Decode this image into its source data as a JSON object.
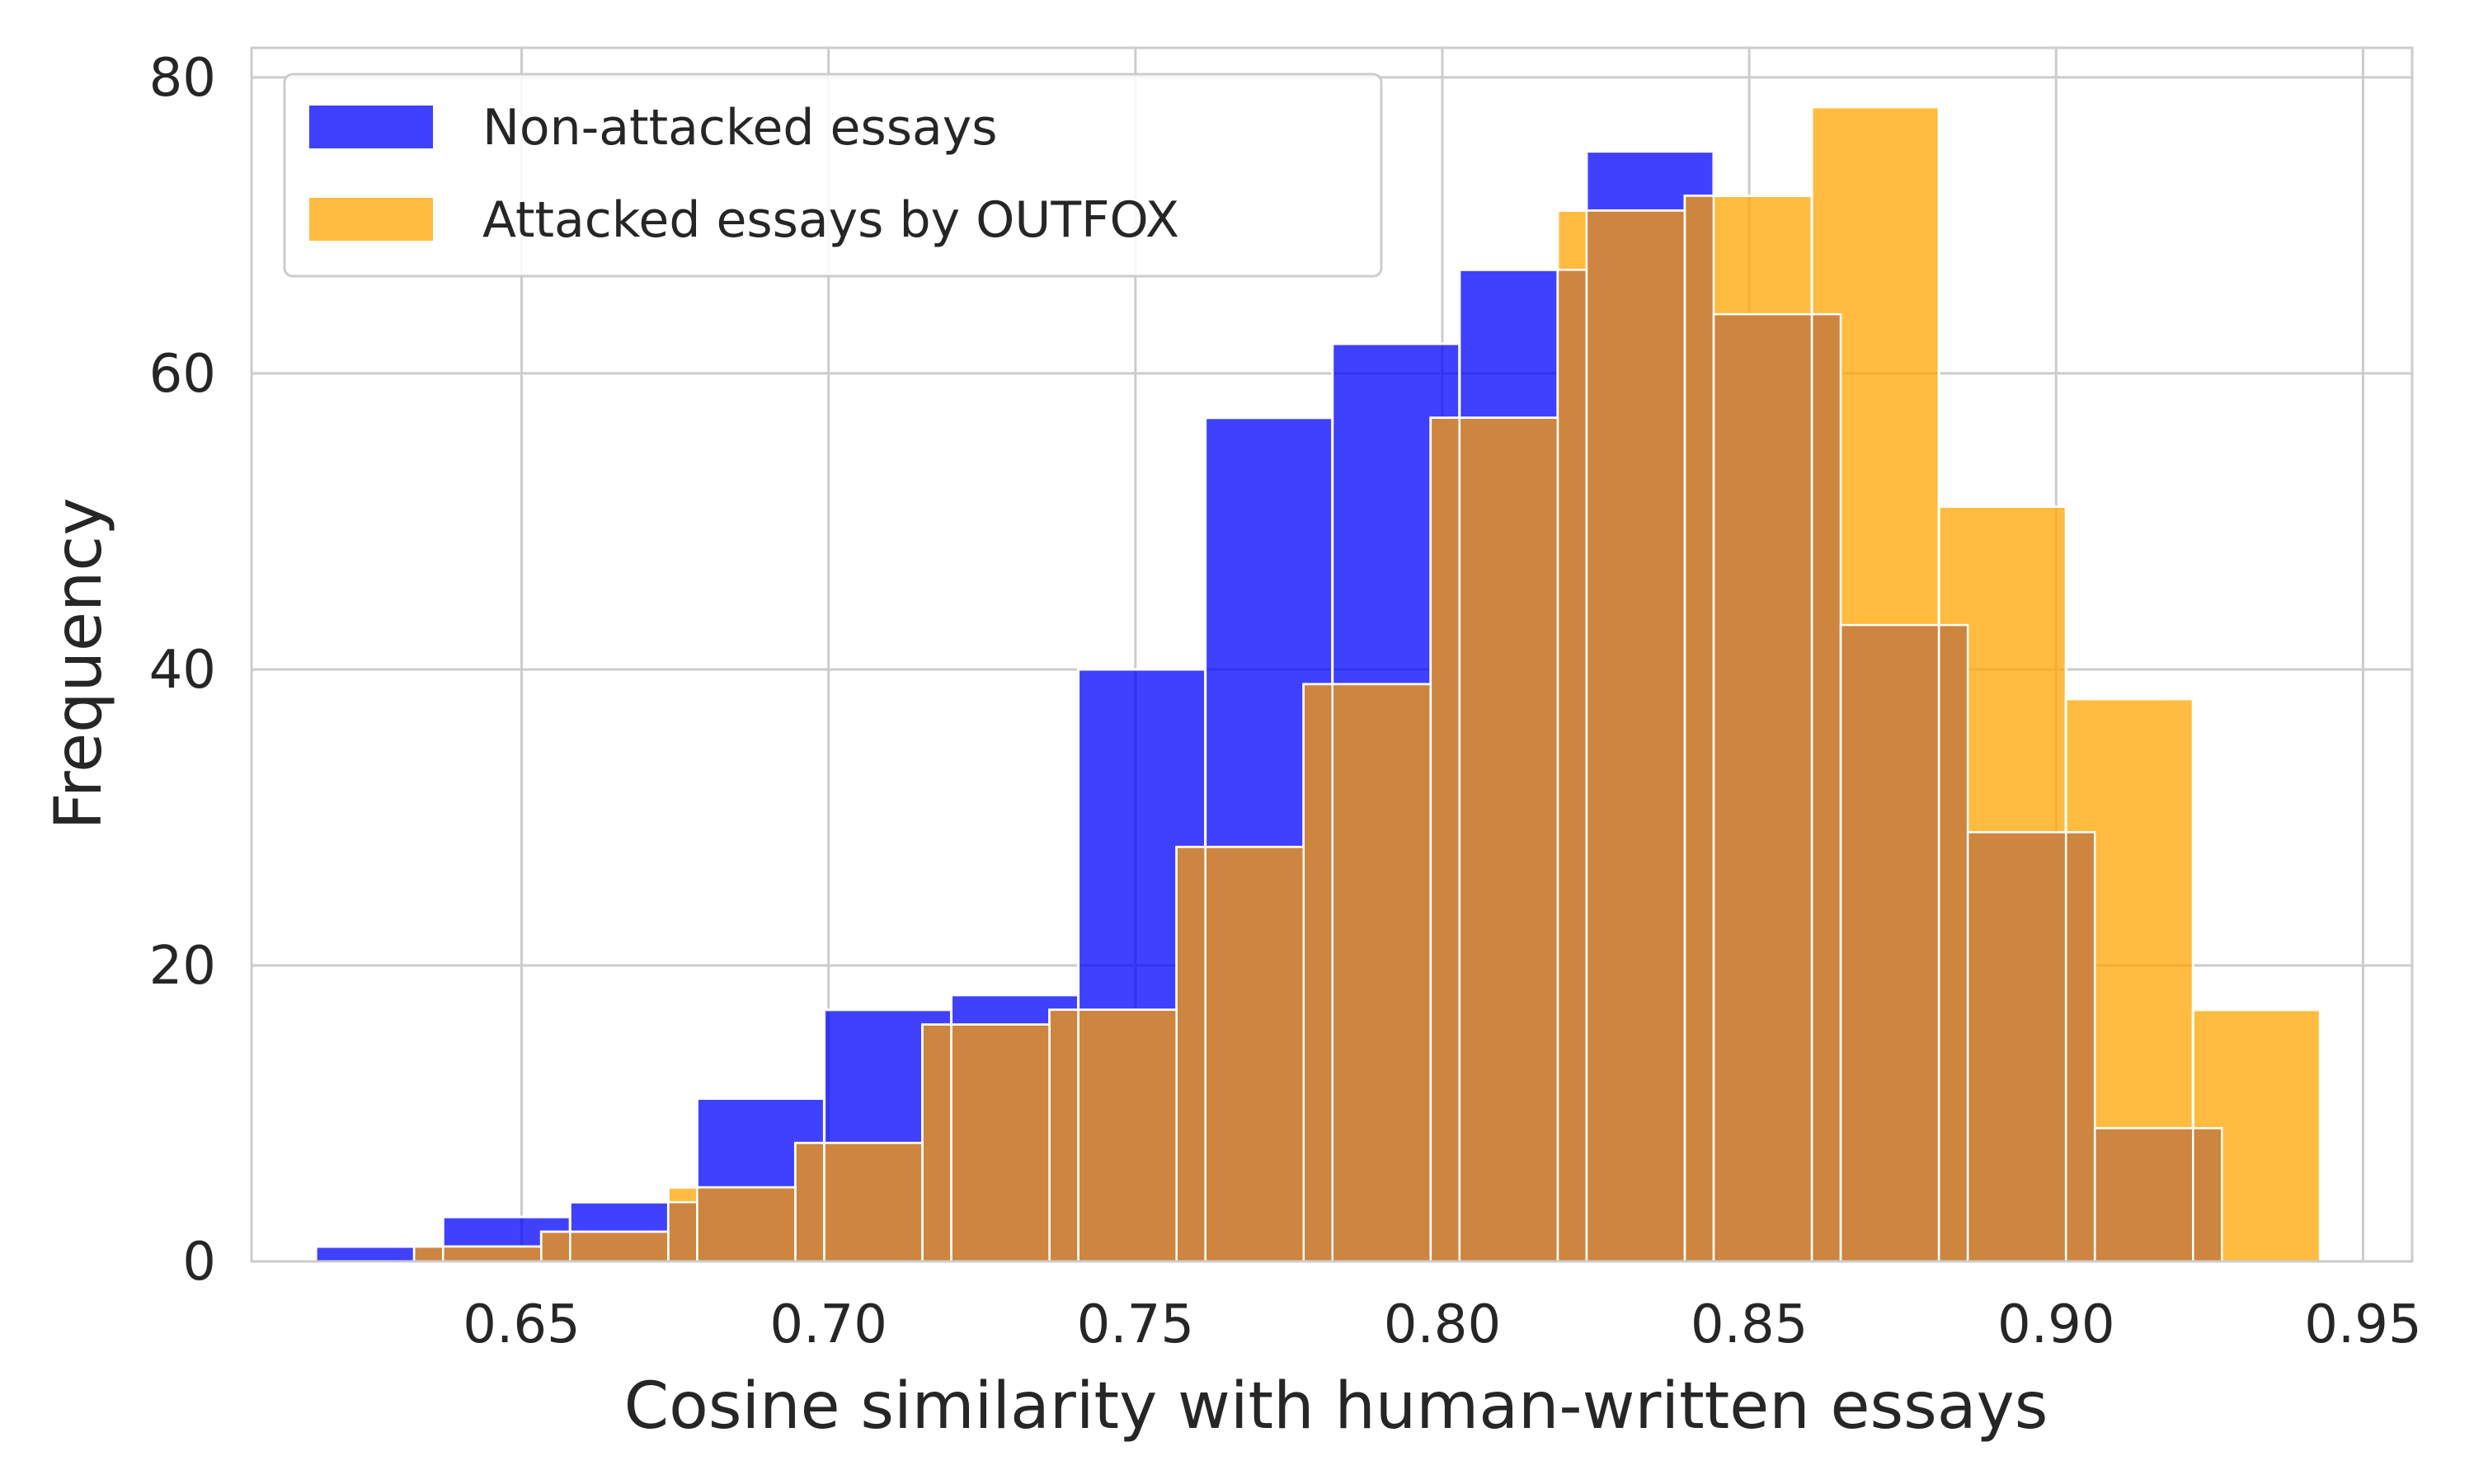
{
  "chart_data": {
    "type": "bar",
    "xlabel": "Cosine similarity with human-written essays",
    "ylabel": "Frequency",
    "xlim": [
      0.606,
      0.958
    ],
    "ylim": [
      0,
      82
    ],
    "xticks": [
      "0.65",
      "0.70",
      "0.75",
      "0.80",
      "0.85",
      "0.90",
      "0.95"
    ],
    "yticks": [
      "0",
      "20",
      "40",
      "60",
      "80"
    ],
    "grid": true,
    "legend_position": "top-left",
    "overlap_color": "#cd853f",
    "series": [
      {
        "name": "Non-attacked essays",
        "color": "#0000ff",
        "bins": [
          {
            "x0": 0.6165,
            "x1": 0.6372,
            "count": 1
          },
          {
            "x0": 0.6372,
            "x1": 0.6579,
            "count": 3
          },
          {
            "x0": 0.6579,
            "x1": 0.6786,
            "count": 4
          },
          {
            "x0": 0.6786,
            "x1": 0.6993,
            "count": 11
          },
          {
            "x0": 0.6993,
            "x1": 0.72,
            "count": 17
          },
          {
            "x0": 0.72,
            "x1": 0.7407,
            "count": 18
          },
          {
            "x0": 0.7407,
            "x1": 0.7614,
            "count": 40
          },
          {
            "x0": 0.7614,
            "x1": 0.7821,
            "count": 57
          },
          {
            "x0": 0.7821,
            "x1": 0.8028,
            "count": 62
          },
          {
            "x0": 0.8028,
            "x1": 0.8235,
            "count": 67
          },
          {
            "x0": 0.8235,
            "x1": 0.8442,
            "count": 75
          },
          {
            "x0": 0.8442,
            "x1": 0.8649,
            "count": 64
          },
          {
            "x0": 0.8649,
            "x1": 0.8856,
            "count": 43
          },
          {
            "x0": 0.8856,
            "x1": 0.9063,
            "count": 29
          },
          {
            "x0": 0.9063,
            "x1": 0.927,
            "count": 9
          }
        ]
      },
      {
        "name": "Attacked essays by OUTFOX",
        "color": "#ffa500",
        "bins": [
          {
            "x0": 0.6325,
            "x1": 0.6532,
            "count": 1
          },
          {
            "x0": 0.6532,
            "x1": 0.6739,
            "count": 2
          },
          {
            "x0": 0.6739,
            "x1": 0.6946,
            "count": 5
          },
          {
            "x0": 0.6946,
            "x1": 0.7153,
            "count": 8
          },
          {
            "x0": 0.7153,
            "x1": 0.736,
            "count": 16
          },
          {
            "x0": 0.736,
            "x1": 0.7567,
            "count": 17
          },
          {
            "x0": 0.7567,
            "x1": 0.7774,
            "count": 28
          },
          {
            "x0": 0.7774,
            "x1": 0.7981,
            "count": 39
          },
          {
            "x0": 0.7981,
            "x1": 0.8188,
            "count": 57
          },
          {
            "x0": 0.8188,
            "x1": 0.8395,
            "count": 71
          },
          {
            "x0": 0.8395,
            "x1": 0.8602,
            "count": 72
          },
          {
            "x0": 0.8602,
            "x1": 0.8809,
            "count": 78
          },
          {
            "x0": 0.8809,
            "x1": 0.9016,
            "count": 51
          },
          {
            "x0": 0.9016,
            "x1": 0.9223,
            "count": 38
          },
          {
            "x0": 0.9223,
            "x1": 0.943,
            "count": 17
          }
        ]
      }
    ]
  }
}
